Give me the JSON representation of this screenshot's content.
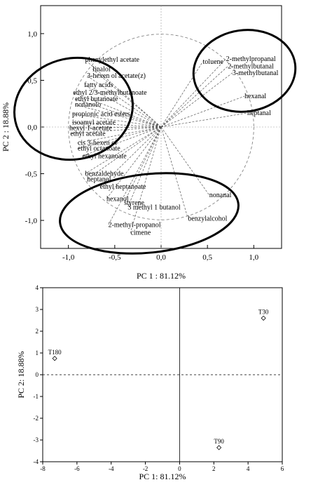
{
  "chart_data": [
    {
      "type": "scatter",
      "subtype": "loading-plot",
      "xlabel": "PC 1 : 81.12%",
      "ylabel": "PC 2 : 18.88%",
      "xlim": [
        -1.3,
        1.3
      ],
      "ylim": [
        -1.3,
        1.3
      ],
      "xticks": [
        -1.0,
        -0.5,
        0.0,
        0.5,
        1.0
      ],
      "yticks": [
        -1.0,
        -0.5,
        0.0,
        0.5,
        1.0
      ],
      "xtick_labels": [
        "-1,0",
        "-0,5",
        "0,0",
        "0,5",
        "1,0"
      ],
      "ytick_labels": [
        "-1,0",
        "-0,5",
        "0,0",
        "0,5",
        "1,0"
      ],
      "unit_circle": true,
      "grid": false,
      "variables": [
        {
          "name": "phenylethyl acetate",
          "x": -0.82,
          "y": 0.72
        },
        {
          "name": "linalol",
          "x": -0.74,
          "y": 0.62
        },
        {
          "name": "3-hexen ol acetate(z)",
          "x": -0.8,
          "y": 0.55
        },
        {
          "name": "fatty acids",
          "x": -0.83,
          "y": 0.45
        },
        {
          "name": "ethyl 2/3-methylbutanoate",
          "x": -0.95,
          "y": 0.37
        },
        {
          "name": "ethyl butanoate",
          "x": -0.93,
          "y": 0.3
        },
        {
          "name": "nonanolo",
          "x": -0.93,
          "y": 0.24
        },
        {
          "name": "propionic acid esters",
          "x": -0.96,
          "y": 0.14
        },
        {
          "name": "isoamyl acetate",
          "x": -0.96,
          "y": 0.05
        },
        {
          "name": "hexyl 1-acetate",
          "x": -0.99,
          "y": -0.01
        },
        {
          "name": "ethyl  acetate",
          "x": -0.98,
          "y": -0.07
        },
        {
          "name": "cis 3-hexen ol",
          "x": -0.9,
          "y": -0.17
        },
        {
          "name": "ethyl octanoate",
          "x": -0.9,
          "y": -0.23
        },
        {
          "name": "ethyl hexanoate",
          "x": -0.85,
          "y": -0.31
        },
        {
          "name": "benzaldehyde",
          "x": -0.82,
          "y": -0.5
        },
        {
          "name": "heptanol",
          "x": -0.8,
          "y": -0.56
        },
        {
          "name": "ethyl heptanoate",
          "x": -0.66,
          "y": -0.64
        },
        {
          "name": "hexanol",
          "x": -0.59,
          "y": -0.77
        },
        {
          "name": "styrene",
          "x": -0.4,
          "y": -0.81
        },
        {
          "name": "3 methyl 1 butanol",
          "x": -0.36,
          "y": -0.86
        },
        {
          "name": "2-methyl-propanol",
          "x": -0.57,
          "y": -1.05
        },
        {
          "name": "cimene",
          "x": -0.33,
          "y": -1.13
        },
        {
          "name": "nonanal",
          "x": 0.52,
          "y": -0.73
        },
        {
          "name": "benzylalcohol",
          "x": 0.29,
          "y": -0.98
        },
        {
          "name": "2-methylpropanal",
          "x": 0.7,
          "y": 0.73
        },
        {
          "name": "toluene",
          "x": 0.45,
          "y": 0.7
        },
        {
          "name": "2-methylbutanal",
          "x": 0.72,
          "y": 0.65
        },
        {
          "name": "3-methylbutanal",
          "x": 0.77,
          "y": 0.58
        },
        {
          "name": "hexanal",
          "x": 0.9,
          "y": 0.33
        },
        {
          "name": "heptanal",
          "x": 0.93,
          "y": 0.15
        }
      ]
    },
    {
      "type": "scatter",
      "subtype": "score-plot",
      "xlabel": "PC 1: 81.12%",
      "ylabel": "PC 2: 18.88%",
      "xlim": [
        -8,
        6
      ],
      "ylim": [
        -4,
        4
      ],
      "xticks": [
        -8,
        -6,
        -4,
        -2,
        0,
        2,
        4,
        6
      ],
      "yticks": [
        -4,
        -3,
        -2,
        -1,
        0,
        1,
        2,
        3,
        4
      ],
      "xtick_labels": [
        "-8",
        "-6",
        "-4",
        "-2",
        "0",
        "2",
        "4",
        "6"
      ],
      "ytick_labels": [
        "-4",
        "-3",
        "-2",
        "-1",
        "0",
        "1",
        "2",
        "3",
        "4"
      ],
      "zero_lines": "dashed",
      "points": [
        {
          "label": "T180",
          "x": -7.3,
          "y": 0.75
        },
        {
          "label": "T30",
          "x": 4.9,
          "y": 2.6
        },
        {
          "label": "T90",
          "x": 2.3,
          "y": -3.35
        }
      ]
    }
  ]
}
